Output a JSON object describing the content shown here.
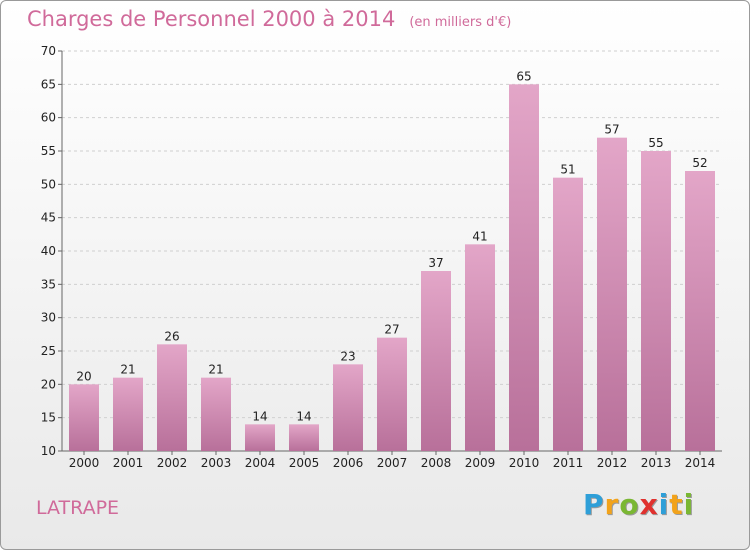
{
  "chart_data": {
    "type": "bar",
    "title": "Charges de Personnel 2000 à 2014",
    "subtitle": "(en milliers d'€)",
    "categories": [
      "2000",
      "2001",
      "2002",
      "2003",
      "2004",
      "2005",
      "2006",
      "2007",
      "2008",
      "2009",
      "2010",
      "2011",
      "2012",
      "2013",
      "2014"
    ],
    "values": [
      20,
      21,
      26,
      21,
      14,
      14,
      23,
      27,
      37,
      41,
      65,
      51,
      57,
      55,
      52
    ],
    "ylim": [
      10,
      70
    ],
    "yticks": [
      10,
      15,
      20,
      25,
      30,
      35,
      40,
      45,
      50,
      55,
      60,
      65,
      70
    ],
    "grid": true,
    "bar_color": "#d98cb5"
  },
  "commune": "LATRAPE",
  "logo": {
    "letters": [
      "P",
      "r",
      "o",
      "x",
      "i",
      "t",
      "i"
    ],
    "colors": [
      "#2e9fd8",
      "#f2a31b",
      "#7ab733",
      "#e0312e",
      "#2e9fd8",
      "#f2a31b",
      "#7ab733"
    ]
  }
}
